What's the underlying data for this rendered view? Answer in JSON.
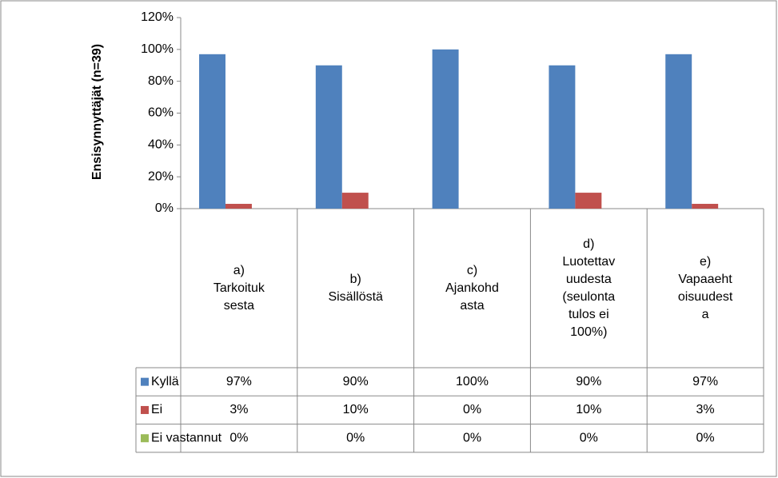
{
  "chart_data": {
    "type": "bar",
    "y_axis_label": "Ensisynnyttäjät (n=39)",
    "categories": [
      "a)\nTarkoituk\nsesta",
      "b)\nSisällöstä",
      "c)\nAjankohd\nasta",
      "d)\nLuotettav\nuudesta\n(seulonta\ntulos ei\n100%)",
      "e)\nVapaaeht\noisuudest\na"
    ],
    "series": [
      {
        "name": "Kyllä",
        "color": "#4f81bd",
        "values": [
          97,
          90,
          100,
          90,
          97
        ],
        "value_labels": [
          "97%",
          "90%",
          "100%",
          "90%",
          "97%"
        ]
      },
      {
        "name": "Ei",
        "color": "#c0504d",
        "values": [
          3,
          10,
          0,
          10,
          3
        ],
        "value_labels": [
          "3%",
          "10%",
          "0%",
          "10%",
          "3%"
        ]
      },
      {
        "name": "Ei vastannut",
        "color": "#9bbb59",
        "values": [
          0,
          0,
          0,
          0,
          0
        ],
        "value_labels": [
          "0%",
          "0%",
          "0%",
          "0%",
          "0%"
        ]
      }
    ],
    "ylim": [
      0,
      120
    ],
    "yticks": [
      {
        "value": 0,
        "label": "0%"
      },
      {
        "value": 20,
        "label": "20%"
      },
      {
        "value": 40,
        "label": "40%"
      },
      {
        "value": 60,
        "label": "60%"
      },
      {
        "value": 80,
        "label": "80%"
      },
      {
        "value": 100,
        "label": "100%"
      },
      {
        "value": 120,
        "label": "120%"
      }
    ]
  }
}
